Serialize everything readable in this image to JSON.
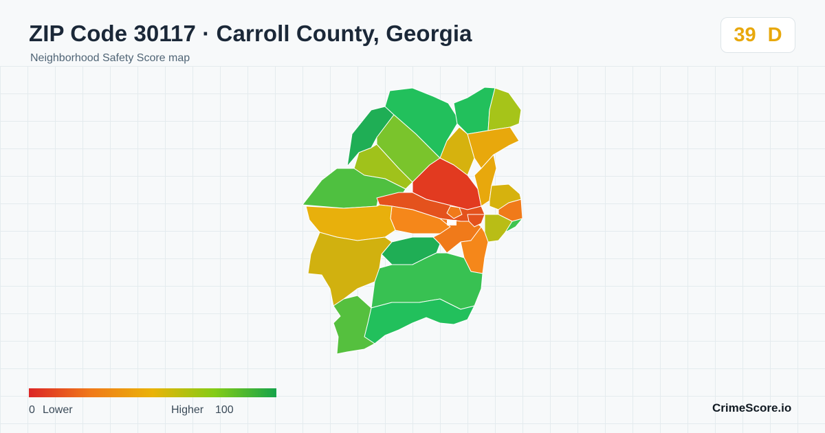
{
  "header": {
    "title": "ZIP Code 30117 · Carroll County, Georgia",
    "subtitle": "Neighborhood Safety Score map"
  },
  "score": {
    "value": "39",
    "grade": "D",
    "color": "#e8a80c"
  },
  "legend": {
    "min_value": "0",
    "min_label": "Lower",
    "max_label": "Higher",
    "max_value": "100",
    "colors": [
      "#dc2626",
      "#f07a1a",
      "#eab308",
      "#84cc16",
      "#16a34a"
    ]
  },
  "brand": "CrimeScore.io",
  "regions": [
    {
      "id": "r1",
      "color": "#1fae55"
    },
    {
      "id": "r2",
      "color": "#22c05c"
    },
    {
      "id": "r3",
      "color": "#7ac42c"
    },
    {
      "id": "r4",
      "color": "#22c05c"
    },
    {
      "id": "r5",
      "color": "#a6c419"
    },
    {
      "id": "r6",
      "color": "#a0c21b"
    },
    {
      "id": "r7",
      "color": "#4fc040"
    },
    {
      "id": "r8",
      "color": "#d6b20e"
    },
    {
      "id": "r9",
      "color": "#e8a80c"
    },
    {
      "id": "r10",
      "color": "#e23a20"
    },
    {
      "id": "r11",
      "color": "#e8a80c"
    },
    {
      "id": "r12",
      "color": "#d6b20e"
    },
    {
      "id": "r13",
      "color": "#f07a1a"
    },
    {
      "id": "r14",
      "color": "#e4521d"
    },
    {
      "id": "r15",
      "color": "#f5871a"
    },
    {
      "id": "r16",
      "color": "#b9bd16"
    },
    {
      "id": "r17",
      "color": "#3fc450"
    },
    {
      "id": "r18",
      "color": "#e8b00c"
    },
    {
      "id": "r19",
      "color": "#d1b10f"
    },
    {
      "id": "r20",
      "color": "#f07a1a"
    },
    {
      "id": "r21",
      "color": "#f5871a"
    },
    {
      "id": "r22",
      "color": "#1fae55"
    },
    {
      "id": "r23",
      "color": "#38c152"
    },
    {
      "id": "r24",
      "color": "#22c05c"
    },
    {
      "id": "r25",
      "color": "#55c03e"
    },
    {
      "id": "r26",
      "color": "#e4521d"
    },
    {
      "id": "r27",
      "color": "#f07a1a"
    }
  ]
}
